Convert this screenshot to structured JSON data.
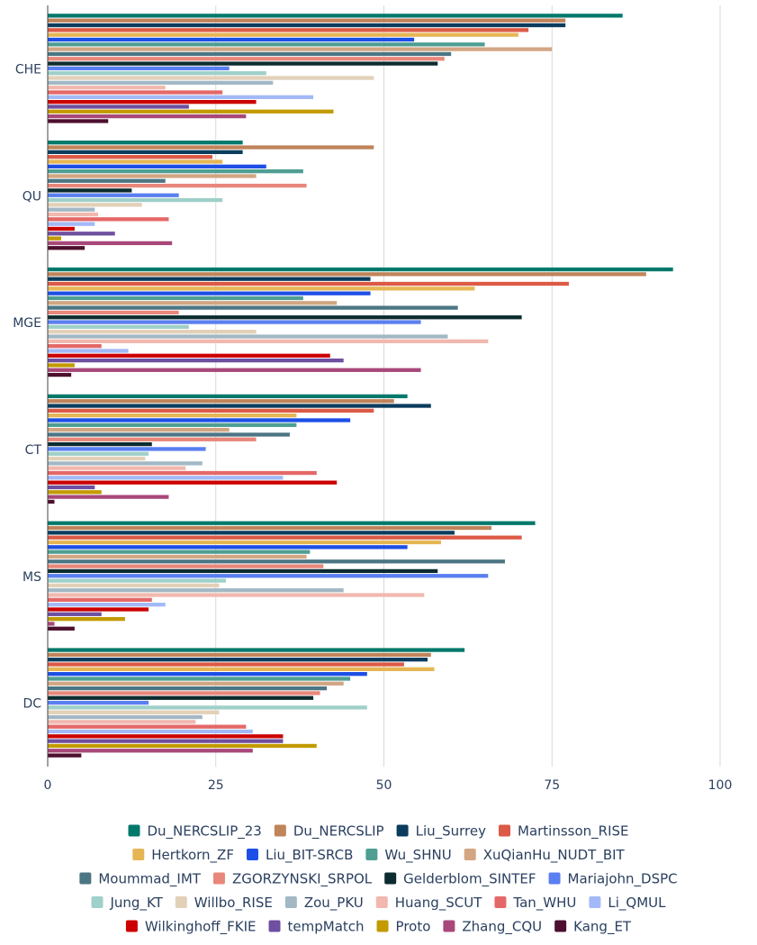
{
  "chart_data": {
    "type": "bar",
    "orientation": "horizontal",
    "categories": [
      "DC",
      "MS",
      "CT",
      "MGE",
      "QU",
      "CHE"
    ],
    "xlim": [
      0,
      100
    ],
    "xticks": [
      0,
      25,
      50,
      75,
      100
    ],
    "grid": true,
    "legend_position": "bottom",
    "series": [
      {
        "name": "Du_NERCSLIP_23",
        "color": "#00796b",
        "values": [
          62,
          72.5,
          53.5,
          93,
          29,
          85.5
        ]
      },
      {
        "name": "Du_NERCSLIP",
        "color": "#c0845a",
        "values": [
          57,
          66,
          51.5,
          89,
          48.5,
          77
        ]
      },
      {
        "name": "Liu_Surrey",
        "color": "#0b3c5d",
        "values": [
          56.5,
          60.5,
          57,
          48,
          29,
          77
        ]
      },
      {
        "name": "Martinsson_RISE",
        "color": "#dc5a46",
        "values": [
          53,
          70.5,
          48.5,
          77.5,
          24.5,
          71.5
        ]
      },
      {
        "name": "Hertkorn_ZF",
        "color": "#e6b655",
        "values": [
          57.5,
          58.5,
          37,
          63.5,
          26,
          70
        ]
      },
      {
        "name": "Liu_BIT-SRCB",
        "color": "#1d4fe6",
        "values": [
          47.5,
          53.5,
          45,
          48,
          32.5,
          54.5
        ]
      },
      {
        "name": "Wu_SHNU",
        "color": "#4f9e93",
        "values": [
          45,
          39,
          37,
          38,
          38,
          65
        ]
      },
      {
        "name": "XuQianHu_NUDT_BIT",
        "color": "#d2a683",
        "values": [
          44,
          38.5,
          27,
          43,
          31,
          75
        ]
      },
      {
        "name": "Moummad_IMT",
        "color": "#4c7684",
        "values": [
          41.5,
          68,
          36,
          61,
          17.5,
          60
        ]
      },
      {
        "name": "ZGORZYNSKI_SRPOL",
        "color": "#e8877a",
        "values": [
          40.5,
          41,
          31,
          19.5,
          38.5,
          59
        ]
      },
      {
        "name": "Gelderblom_SINTEF",
        "color": "#0c2c2f",
        "values": [
          39.5,
          58,
          15.5,
          70.5,
          12.5,
          58
        ]
      },
      {
        "name": "Mariajohn_DSPC",
        "color": "#5a7ff0",
        "values": [
          15,
          65.5,
          23.5,
          55.5,
          19.5,
          27
        ]
      },
      {
        "name": "Jung_KT",
        "color": "#9fd0c9",
        "values": [
          47.5,
          26.5,
          15,
          21,
          26,
          32.5
        ]
      },
      {
        "name": "Willbo_RISE",
        "color": "#e2d0b8",
        "values": [
          25.5,
          25.5,
          14.5,
          31,
          14,
          48.5
        ]
      },
      {
        "name": "Zou_PKU",
        "color": "#a3b8c5",
        "values": [
          23,
          44,
          23,
          59.5,
          7,
          33.5
        ]
      },
      {
        "name": "Huang_SCUT",
        "color": "#f1b8ae",
        "values": [
          22,
          56,
          20.5,
          65.5,
          7.5,
          17.5
        ]
      },
      {
        "name": "Tan_WHU",
        "color": "#e56868",
        "values": [
          29.5,
          15.5,
          40,
          8,
          18,
          26
        ]
      },
      {
        "name": "Li_QMUL",
        "color": "#a3b9f7",
        "values": [
          30.5,
          17.5,
          35,
          12,
          7,
          39.5
        ]
      },
      {
        "name": "Wilkinghoff_FKIE",
        "color": "#cc0000",
        "values": [
          35,
          15,
          43,
          42,
          4,
          31
        ]
      },
      {
        "name": "tempMatch",
        "color": "#6e4fa0",
        "values": [
          35,
          8,
          7,
          44,
          10,
          21
        ]
      },
      {
        "name": "Proto",
        "color": "#c39a00",
        "values": [
          40,
          11.5,
          8,
          4,
          2,
          42.5
        ]
      },
      {
        "name": "Zhang_CQU",
        "color": "#a8487a",
        "values": [
          30.5,
          1,
          18,
          55.5,
          18.5,
          29.5
        ]
      },
      {
        "name": "Kang_ET",
        "color": "#4d0f2e",
        "values": [
          5,
          4,
          1,
          3.5,
          5.5,
          9
        ]
      }
    ]
  }
}
